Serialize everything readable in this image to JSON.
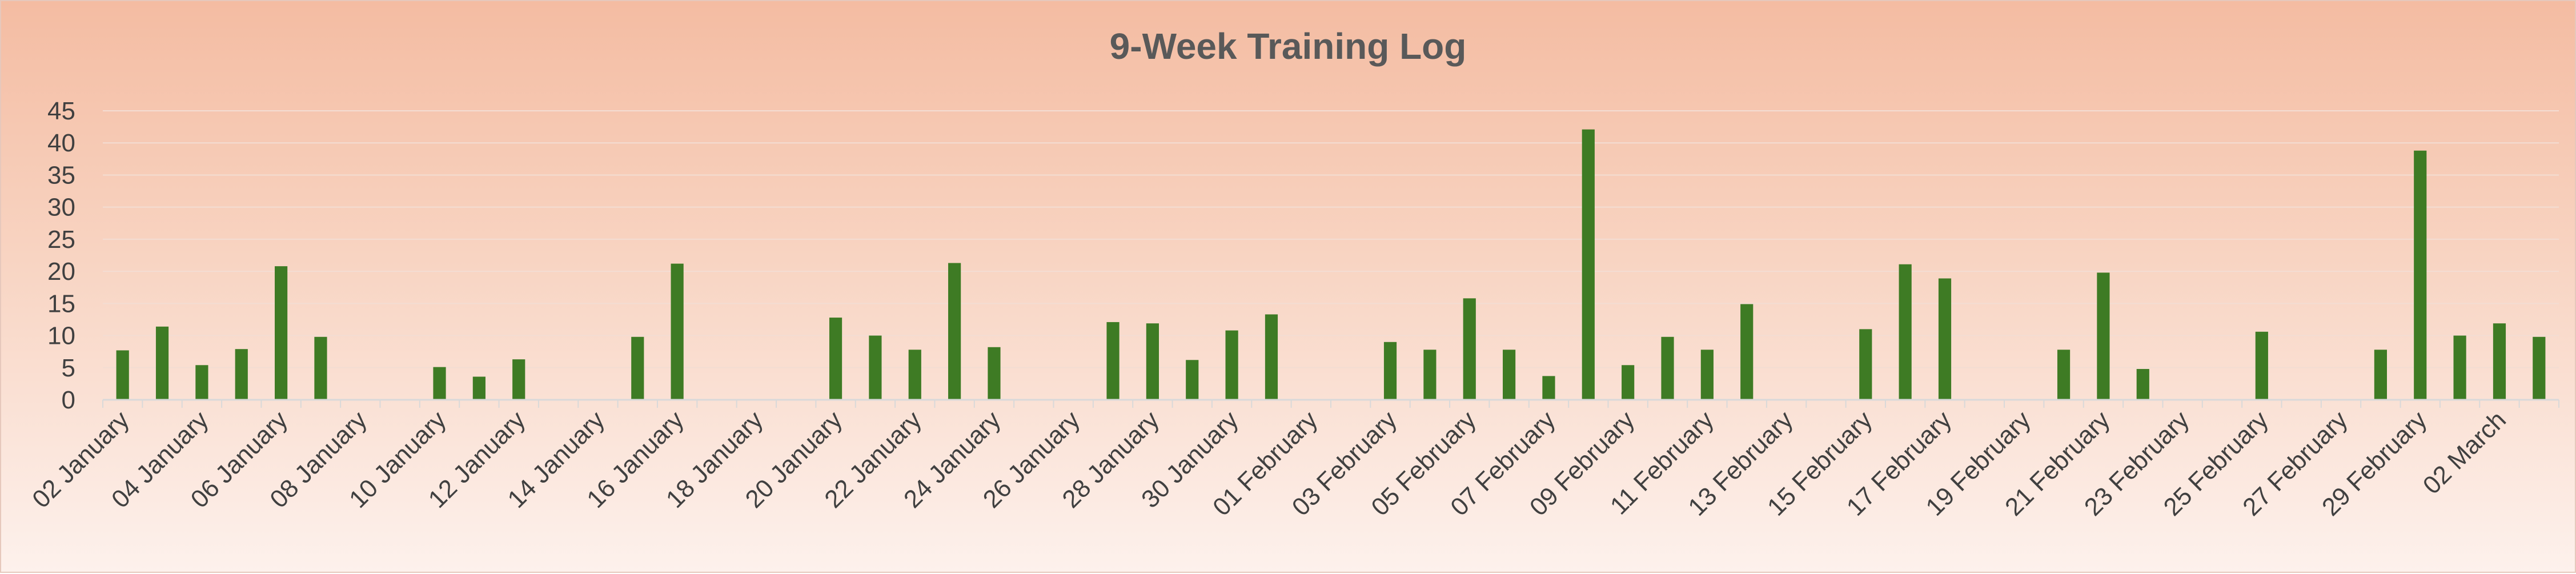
{
  "chart_data": {
    "type": "bar",
    "title": "9-Week Training Log",
    "xlabel": "",
    "ylabel": "",
    "ylim": [
      0,
      45
    ],
    "yticks": [
      0,
      5,
      10,
      15,
      20,
      25,
      30,
      35,
      40,
      45
    ],
    "grid": true,
    "legend": "none",
    "bar_color": "#3E7B24",
    "categories": [
      "02 January",
      "03 January",
      "04 January",
      "05 January",
      "06 January",
      "07 January",
      "08 January",
      "09 January",
      "10 January",
      "11 January",
      "12 January",
      "13 January",
      "14 January",
      "15 January",
      "16 January",
      "17 January",
      "18 January",
      "19 January",
      "20 January",
      "21 January",
      "22 January",
      "23 January",
      "24 January",
      "25 January",
      "26 January",
      "27 January",
      "28 January",
      "29 January",
      "30 January",
      "31 January",
      "01 February",
      "02 February",
      "03 February",
      "04 February",
      "05 February",
      "06 February",
      "07 February",
      "08 February",
      "09 February",
      "10 February",
      "11 February",
      "12 February",
      "13 February",
      "14 February",
      "15 February",
      "16 February",
      "17 February",
      "18 February",
      "19 February",
      "20 February",
      "21 February",
      "22 February",
      "23 February",
      "24 February",
      "25 February",
      "26 February",
      "27 February",
      "28 February",
      "29 February",
      "01 March",
      "02 March",
      "03 March"
    ],
    "tick_labels": [
      "02 January",
      "04 January",
      "06 January",
      "08 January",
      "10 January",
      "12 January",
      "14 January",
      "16 January",
      "18 January",
      "20 January",
      "22 January",
      "24 January",
      "26 January",
      "28 January",
      "30 January",
      "01 February",
      "03 February",
      "05 February",
      "07 February",
      "09 February",
      "11 February",
      "13 February",
      "15 February",
      "17 February",
      "19 February",
      "21 February",
      "23 February",
      "25 February",
      "27 February",
      "29 February",
      "02 March"
    ],
    "values": [
      7.7,
      11.4,
      5.4,
      7.9,
      20.8,
      9.8,
      0,
      0,
      5.1,
      3.6,
      6.3,
      0,
      0,
      9.8,
      21.2,
      0,
      0,
      0,
      12.8,
      10,
      7.8,
      21.3,
      8.2,
      0,
      0,
      12.1,
      11.9,
      6.2,
      10.8,
      13.3,
      0,
      0,
      9,
      7.8,
      15.8,
      7.8,
      3.7,
      42.1,
      5.4,
      9.8,
      7.8,
      14.9,
      0,
      0,
      11,
      21.1,
      18.9,
      0,
      0,
      7.8,
      19.8,
      4.8,
      0,
      0,
      10.6,
      0,
      0,
      7.8,
      38.8,
      10,
      11.9,
      9.8
    ]
  }
}
